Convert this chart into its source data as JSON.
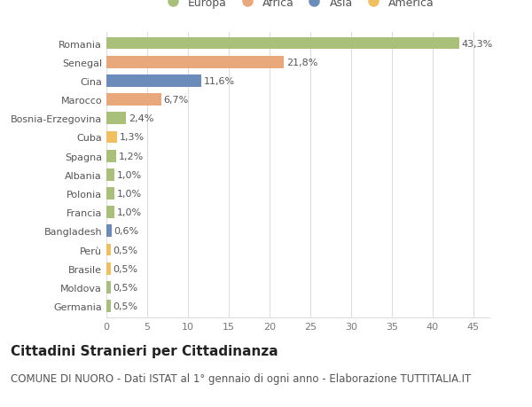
{
  "countries": [
    "Romania",
    "Senegal",
    "Cina",
    "Marocco",
    "Bosnia-Erzegovina",
    "Cuba",
    "Spagna",
    "Albania",
    "Polonia",
    "Francia",
    "Bangladesh",
    "Perù",
    "Brasile",
    "Moldova",
    "Germania"
  ],
  "values": [
    43.3,
    21.8,
    11.6,
    6.7,
    2.4,
    1.3,
    1.2,
    1.0,
    1.0,
    1.0,
    0.6,
    0.5,
    0.5,
    0.5,
    0.5
  ],
  "labels": [
    "43,3%",
    "21,8%",
    "11,6%",
    "6,7%",
    "2,4%",
    "1,3%",
    "1,2%",
    "1,0%",
    "1,0%",
    "1,0%",
    "0,6%",
    "0,5%",
    "0,5%",
    "0,5%",
    "0,5%"
  ],
  "continents": [
    "Europa",
    "Africa",
    "Asia",
    "Africa",
    "Europa",
    "America",
    "Europa",
    "Europa",
    "Europa",
    "Europa",
    "Asia",
    "America",
    "America",
    "Europa",
    "Europa"
  ],
  "colors": {
    "Europa": "#a8c07a",
    "Africa": "#e8a87c",
    "Asia": "#6b8cba",
    "America": "#f0c060"
  },
  "legend_order": [
    "Europa",
    "Africa",
    "Asia",
    "America"
  ],
  "title": "Cittadini Stranieri per Cittadinanza",
  "subtitle": "COMUNE DI NUORO - Dati ISTAT al 1° gennaio di ogni anno - Elaborazione TUTTITALIA.IT",
  "xlim": [
    0,
    47
  ],
  "xticks": [
    0,
    5,
    10,
    15,
    20,
    25,
    30,
    35,
    40,
    45
  ],
  "background_color": "#ffffff",
  "grid_color": "#dddddd",
  "bar_height": 0.65,
  "title_fontsize": 11,
  "subtitle_fontsize": 8.5,
  "label_fontsize": 8,
  "tick_fontsize": 8,
  "legend_fontsize": 9
}
